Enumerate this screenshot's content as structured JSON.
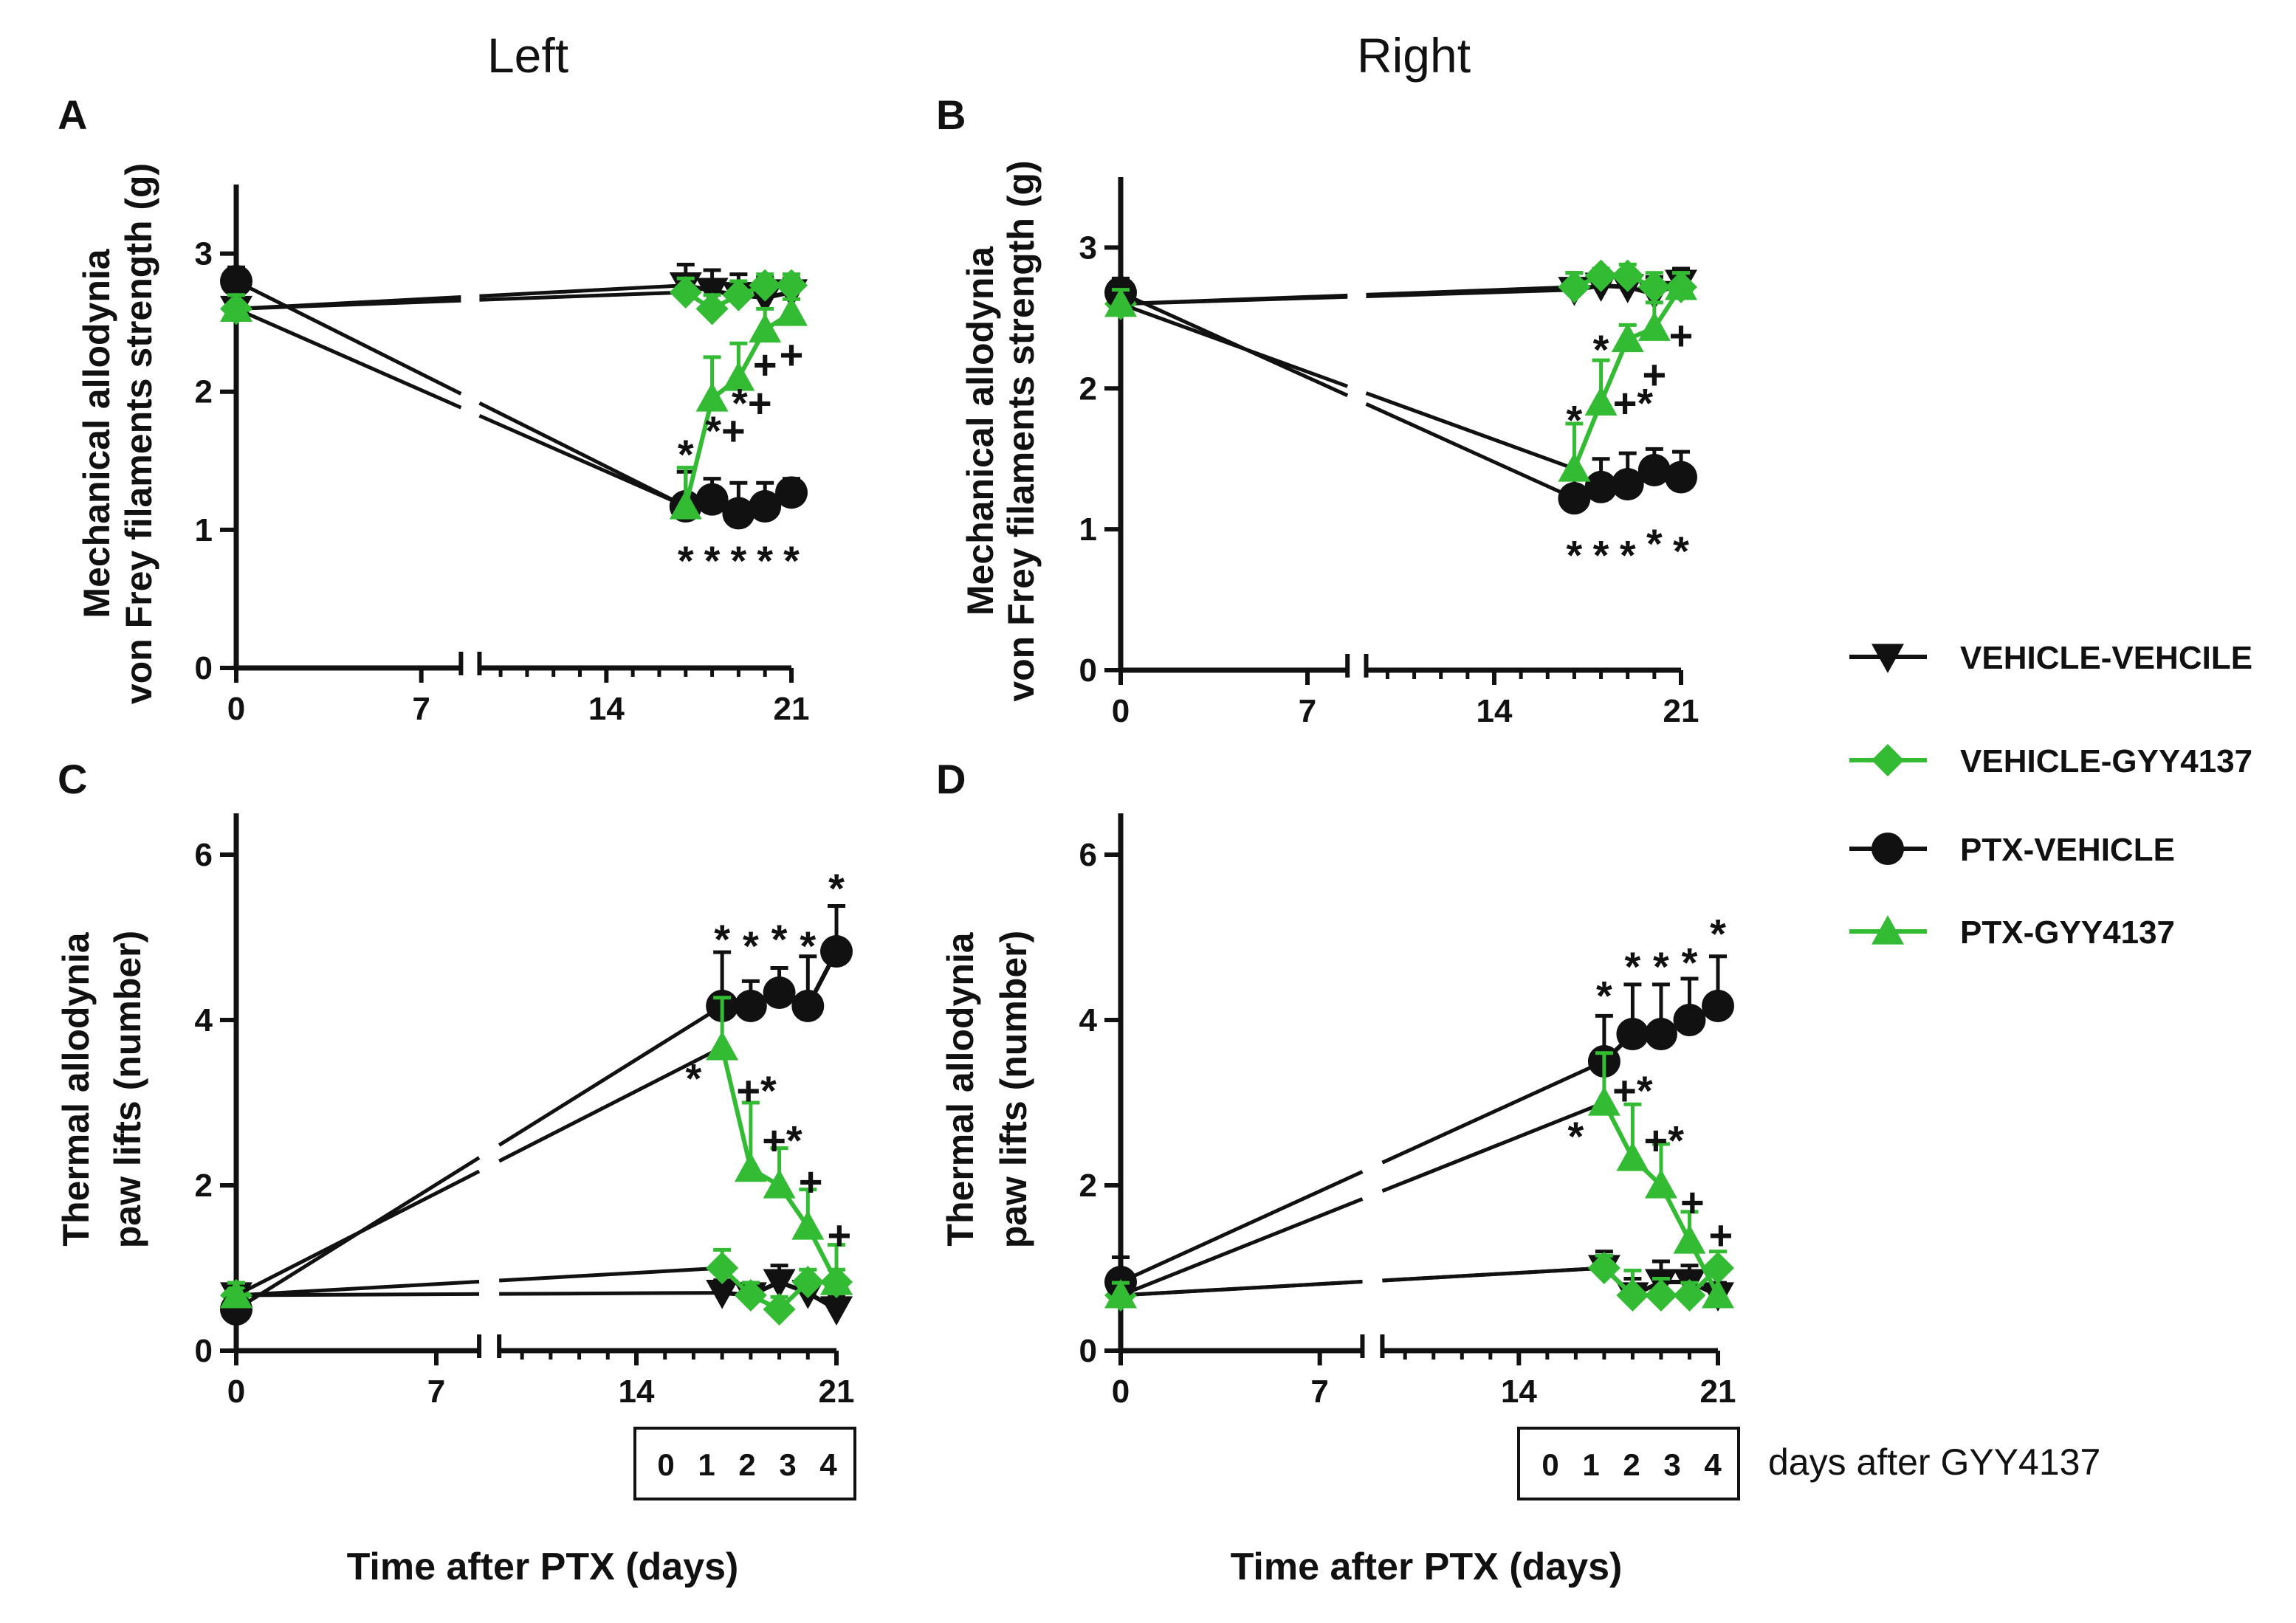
{
  "colors": {
    "black": "#111111",
    "green": "#33bb33"
  },
  "columns": {
    "left": "Left",
    "right": "Right"
  },
  "legend": [
    {
      "label": "VEHICLE-VEHCILE",
      "marker": "triangle-down",
      "color": "#111111"
    },
    {
      "label": "VEHICLE-GYY4137",
      "marker": "diamond",
      "color": "#33bb33"
    },
    {
      "label": "PTX-VEHICLE",
      "marker": "circle",
      "color": "#111111"
    },
    {
      "label": "PTX-GYY4137",
      "marker": "triangle-up",
      "color": "#33bb33"
    }
  ],
  "xtick_labels": [
    "0",
    "7",
    "14",
    "21"
  ],
  "day_box_labels": [
    "0",
    "1",
    "2",
    "3",
    "4"
  ],
  "days_after_label": "days after GYY4137",
  "xaxis_title": "Time after PTX (days)",
  "chart_data": [
    {
      "panel": "A",
      "type": "line",
      "column": "Left",
      "ylabel": [
        "Mechanical allodynia",
        "von Frey filaments strength (g)"
      ],
      "ylim": [
        0,
        3.5
      ],
      "yticks": [
        0,
        1,
        2,
        3
      ],
      "x": [
        0,
        17,
        18,
        19,
        20,
        21
      ],
      "series": [
        {
          "name": "VEHICLE-VEHCILE",
          "values": [
            2.6,
            2.77,
            2.73,
            2.7,
            2.68,
            2.72
          ],
          "errors": [
            0.1,
            0.15,
            0.15,
            0.15,
            0.15,
            0.1
          ]
        },
        {
          "name": "VEHICLE-GYY4137",
          "values": [
            2.6,
            2.72,
            2.6,
            2.7,
            2.77,
            2.77
          ],
          "errors": [
            0.1,
            0.1,
            0.1,
            0.1,
            0.08,
            0.08
          ]
        },
        {
          "name": "PTX-VEHICLE",
          "values": [
            2.8,
            1.17,
            1.22,
            1.12,
            1.17,
            1.27
          ],
          "errors": [
            0.1,
            0.25,
            0.15,
            0.22,
            0.17,
            0.1
          ]
        },
        {
          "name": "PTX-GYY4137",
          "values": [
            2.6,
            1.17,
            1.95,
            2.1,
            2.45,
            2.57
          ],
          "errors": [
            0.1,
            0.28,
            0.3,
            0.25,
            0.15,
            0.1
          ]
        }
      ],
      "annotations": [
        {
          "x": 17,
          "y": 1.55,
          "text": "*",
          "color": "#111111"
        },
        {
          "x": 18.5,
          "y": 1.72,
          "text": "*+",
          "color": "#111111"
        },
        {
          "x": 19.5,
          "y": 1.92,
          "text": "*+",
          "color": "#111111"
        },
        {
          "x": 20,
          "y": 2.2,
          "text": "+",
          "color": "#111111"
        },
        {
          "x": 21,
          "y": 2.27,
          "text": "+",
          "color": "#111111"
        },
        {
          "x": 17,
          "y": 0.78,
          "text": "*",
          "color": "#111111"
        },
        {
          "x": 18,
          "y": 0.78,
          "text": "*",
          "color": "#111111"
        },
        {
          "x": 19,
          "y": 0.78,
          "text": "*",
          "color": "#111111"
        },
        {
          "x": 20,
          "y": 0.78,
          "text": "*",
          "color": "#111111"
        },
        {
          "x": 21,
          "y": 0.78,
          "text": "*",
          "color": "#111111"
        }
      ]
    },
    {
      "panel": "B",
      "type": "line",
      "column": "Right",
      "ylabel": [
        "Mechanical allodynia",
        "von Frey filaments strength (g)"
      ],
      "ylim": [
        0,
        3.5
      ],
      "yticks": [
        0,
        1,
        2,
        3
      ],
      "x": [
        0,
        17,
        18,
        19,
        20,
        21
      ],
      "series": [
        {
          "name": "VEHICLE-VEHCILE",
          "values": [
            2.6,
            2.7,
            2.73,
            2.72,
            2.67,
            2.75
          ],
          "errors": [
            0.1,
            0.12,
            0.12,
            0.12,
            0.12,
            0.1
          ]
        },
        {
          "name": "VEHICLE-GYY4137",
          "values": [
            2.6,
            2.72,
            2.8,
            2.8,
            2.72,
            2.72
          ],
          "errors": [
            0.1,
            0.1,
            0.05,
            0.08,
            0.1,
            0.1
          ]
        },
        {
          "name": "PTX-VEHICLE",
          "values": [
            2.68,
            1.22,
            1.3,
            1.32,
            1.42,
            1.37
          ],
          "errors": [
            0.1,
            0.2,
            0.2,
            0.22,
            0.15,
            0.18
          ]
        },
        {
          "name": "PTX-GYY4137",
          "values": [
            2.6,
            1.43,
            1.9,
            2.35,
            2.43,
            2.72
          ],
          "errors": [
            0.1,
            0.32,
            0.3,
            0.1,
            0.18,
            0.1
          ]
        }
      ],
      "annotations": [
        {
          "x": 17,
          "y": 1.78,
          "text": "*",
          "color": "#111111"
        },
        {
          "x": 18,
          "y": 2.28,
          "text": "*",
          "color": "#111111"
        },
        {
          "x": 19.2,
          "y": 1.9,
          "text": "+*",
          "color": "#111111"
        },
        {
          "x": 20,
          "y": 2.1,
          "text": "+",
          "color": "#111111"
        },
        {
          "x": 21,
          "y": 2.38,
          "text": "+",
          "color": "#111111"
        },
        {
          "x": 17,
          "y": 0.82,
          "text": "*",
          "color": "#111111"
        },
        {
          "x": 18,
          "y": 0.82,
          "text": "*",
          "color": "#111111"
        },
        {
          "x": 19,
          "y": 0.82,
          "text": "*",
          "color": "#111111"
        },
        {
          "x": 20,
          "y": 0.9,
          "text": "*",
          "color": "#111111"
        },
        {
          "x": 21,
          "y": 0.85,
          "text": "*",
          "color": "#111111"
        }
      ]
    },
    {
      "panel": "C",
      "type": "line",
      "column": "Left",
      "ylabel": [
        "Thermal allodynia",
        "paw lifts (number)"
      ],
      "ylim": [
        0,
        6.5
      ],
      "yticks": [
        0,
        2,
        4,
        6
      ],
      "x": [
        0,
        17,
        18,
        19,
        20,
        21
      ],
      "series": [
        {
          "name": "VEHICLE-VEHCILE",
          "values": [
            0.67,
            0.7,
            0.67,
            0.83,
            0.7,
            0.5
          ],
          "errors": [
            0.15,
            0.15,
            0.15,
            0.2,
            0.15,
            0.15
          ]
        },
        {
          "name": "VEHICLE-GYY4137",
          "values": [
            0.67,
            1.0,
            0.67,
            0.5,
            0.83,
            0.83
          ],
          "errors": [
            0.15,
            0.22,
            0.15,
            0.15,
            0.15,
            0.15
          ]
        },
        {
          "name": "PTX-VEHICLE",
          "values": [
            0.5,
            4.17,
            4.17,
            4.33,
            4.17,
            4.83
          ],
          "errors": [
            0.3,
            0.65,
            0.3,
            0.3,
            0.6,
            0.55
          ]
        },
        {
          "name": "PTX-GYY4137",
          "values": [
            0.67,
            3.67,
            2.2,
            2.0,
            1.5,
            0.83
          ],
          "errors": [
            0.15,
            0.6,
            0.8,
            0.45,
            0.45,
            0.45
          ]
        }
      ],
      "annotations": [
        {
          "x": 17,
          "y": 4.98,
          "text": "*",
          "color": "#111111"
        },
        {
          "x": 18,
          "y": 4.9,
          "text": "*",
          "color": "#111111"
        },
        {
          "x": 19,
          "y": 4.98,
          "text": "*",
          "color": "#111111"
        },
        {
          "x": 20,
          "y": 4.9,
          "text": "*",
          "color": "#111111"
        },
        {
          "x": 21,
          "y": 5.6,
          "text": "*",
          "color": "#111111"
        },
        {
          "x": 16.0,
          "y": 3.3,
          "text": "*",
          "color": "#111111"
        },
        {
          "x": 18.2,
          "y": 3.15,
          "text": "+*",
          "color": "#111111"
        },
        {
          "x": 19.1,
          "y": 2.55,
          "text": "+*",
          "color": "#111111"
        },
        {
          "x": 20.1,
          "y": 2.05,
          "text": "+",
          "color": "#111111"
        },
        {
          "x": 21.1,
          "y": 1.4,
          "text": "+",
          "color": "#111111"
        }
      ]
    },
    {
      "panel": "D",
      "type": "line",
      "column": "Right",
      "ylabel": [
        "Thermal allodynia",
        "paw lifts (number)"
      ],
      "ylim": [
        0,
        6.5
      ],
      "yticks": [
        0,
        2,
        4,
        6
      ],
      "x": [
        0,
        17,
        18,
        19,
        20,
        21
      ],
      "series": [
        {
          "name": "VEHICLE-VEHCILE",
          "values": [
            0.67,
            1.0,
            0.67,
            0.83,
            0.83,
            0.67
          ],
          "errors": [
            0.2,
            0.2,
            0.2,
            0.25,
            0.2,
            0.15
          ]
        },
        {
          "name": "VEHICLE-GYY4137",
          "values": [
            0.67,
            1.0,
            0.67,
            0.67,
            0.67,
            1.0
          ],
          "errors": [
            0.15,
            0.15,
            0.3,
            0.2,
            0.15,
            0.2
          ]
        },
        {
          "name": "PTX-VEHICLE",
          "values": [
            0.83,
            3.5,
            3.83,
            3.83,
            4.0,
            4.17
          ],
          "errors": [
            0.3,
            0.55,
            0.6,
            0.6,
            0.5,
            0.6
          ]
        },
        {
          "name": "PTX-GYY4137",
          "values": [
            0.67,
            3.0,
            2.33,
            2.0,
            1.33,
            0.67
          ],
          "errors": [
            0.15,
            0.6,
            0.65,
            0.5,
            0.35,
            0.35
          ]
        }
      ],
      "annotations": [
        {
          "x": 17,
          "y": 4.3,
          "text": "*",
          "color": "#111111"
        },
        {
          "x": 18,
          "y": 4.65,
          "text": "*",
          "color": "#111111"
        },
        {
          "x": 19,
          "y": 4.65,
          "text": "*",
          "color": "#111111"
        },
        {
          "x": 20,
          "y": 4.7,
          "text": "*",
          "color": "#111111"
        },
        {
          "x": 21,
          "y": 5.05,
          "text": "*",
          "color": "#111111"
        },
        {
          "x": 16.0,
          "y": 2.6,
          "text": "*",
          "color": "#111111"
        },
        {
          "x": 18.0,
          "y": 3.15,
          "text": "+*",
          "color": "#111111"
        },
        {
          "x": 19.1,
          "y": 2.55,
          "text": "+*",
          "color": "#111111"
        },
        {
          "x": 20.1,
          "y": 1.8,
          "text": "+",
          "color": "#111111"
        },
        {
          "x": 21.1,
          "y": 1.4,
          "text": "+",
          "color": "#111111"
        }
      ]
    }
  ]
}
